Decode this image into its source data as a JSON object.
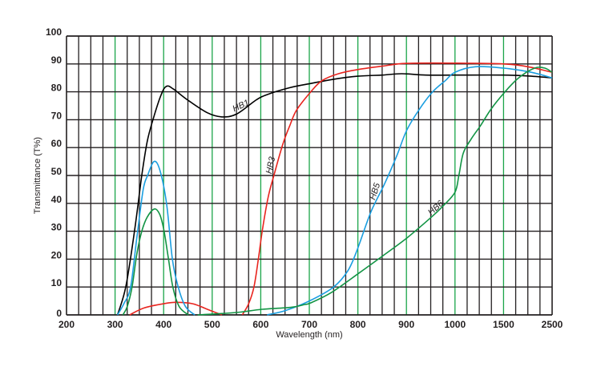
{
  "chart_data": {
    "type": "line",
    "title": "",
    "xlabel": "Wavelength (nm)",
    "ylabel": "Transmittance (T%)",
    "x_scale": "piecewise (200–1000 linear, then 1500, 2500)",
    "x_ticks": [
      200,
      300,
      400,
      500,
      600,
      700,
      800,
      900,
      1000,
      1500,
      2500
    ],
    "y_ticks": [
      0,
      10,
      20,
      30,
      40,
      50,
      60,
      70,
      80,
      90,
      100
    ],
    "ylim": [
      0,
      100
    ],
    "xlim": [
      200,
      2500
    ],
    "grid": true,
    "grid_colors": {
      "minor": "#231f20",
      "major": "#1aa549"
    },
    "series": [
      {
        "name": "HB1",
        "color": "#000000",
        "segments": [
          [
            [
              305,
              0
            ],
            [
              322,
              10
            ],
            [
              340,
              30
            ],
            [
              355,
              50
            ],
            [
              366,
              62
            ],
            [
              378,
              70
            ],
            [
              395,
              79
            ],
            [
              406,
              82
            ],
            [
              420,
              81
            ],
            [
              450,
              77
            ],
            [
              490,
              72.5
            ],
            [
              520,
              71
            ],
            [
              550,
              72
            ],
            [
              590,
              77
            ],
            [
              613,
              79
            ],
            [
              660,
              81.5
            ],
            [
              703,
              83
            ],
            [
              750,
              84.5
            ],
            [
              800,
              85.6
            ],
            [
              850,
              86
            ],
            [
              890,
              86.5
            ],
            [
              940,
              86
            ],
            [
              1000,
              86
            ],
            [
              1500,
              86
            ],
            [
              2000,
              85.7
            ],
            [
              2500,
              85
            ]
          ]
        ]
      },
      {
        "name": "HB3",
        "color": "#e8251f",
        "segments": [
          [
            [
              330,
              0
            ],
            [
              360,
              2.5
            ],
            [
              400,
              4
            ],
            [
              425,
              4.5
            ],
            [
              460,
              4
            ],
            [
              490,
              2
            ],
            [
              520,
              0
            ]
          ],
          [
            [
              562,
              0
            ],
            [
              575,
              4
            ],
            [
              586,
              10
            ],
            [
              595,
              20
            ],
            [
              603,
              30
            ],
            [
              615,
              42
            ],
            [
              627,
              50
            ],
            [
              645,
              61
            ],
            [
              660,
              68
            ],
            [
              674,
              73.5
            ],
            [
              703,
              80
            ],
            [
              726,
              84
            ],
            [
              760,
              86.5
            ],
            [
              800,
              88
            ],
            [
              850,
              89.2
            ],
            [
              900,
              90.2
            ],
            [
              1000,
              90.3
            ],
            [
              1500,
              90
            ],
            [
              2000,
              89
            ],
            [
              2500,
              87
            ]
          ]
        ]
      },
      {
        "name": "HB5",
        "color": "#1a9ee0",
        "segments": [
          [
            [
              305,
              0
            ],
            [
              318,
              4
            ],
            [
              332,
              10
            ],
            [
              345,
              28
            ],
            [
              358,
              45
            ],
            [
              367,
              50
            ],
            [
              380,
              55
            ],
            [
              392,
              52
            ],
            [
              406,
              40
            ],
            [
              418,
              20
            ],
            [
              430,
              10
            ],
            [
              445,
              3
            ],
            [
              464,
              0
            ]
          ],
          [
            [
              613,
              0
            ],
            [
              650,
              1.5
            ],
            [
              700,
              5
            ],
            [
              750,
              10
            ],
            [
              780,
              16
            ],
            [
              800,
              24
            ],
            [
              827,
              37
            ],
            [
              855,
              47
            ],
            [
              880,
              57
            ],
            [
              900,
              66
            ],
            [
              926,
              73.6
            ],
            [
              954,
              80
            ],
            [
              980,
              84
            ],
            [
              1000,
              87
            ],
            [
              1210,
              89
            ],
            [
              1500,
              88.5
            ],
            [
              2070,
              87
            ],
            [
              2500,
              85
            ]
          ]
        ]
      },
      {
        "name": "HB6",
        "color": "#129444",
        "segments": [
          [
            [
              316,
              0
            ],
            [
              325,
              3
            ],
            [
              335,
              10
            ],
            [
              345,
              22
            ],
            [
              355,
              30
            ],
            [
              366,
              35
            ],
            [
              381,
              38
            ],
            [
              392,
              36
            ],
            [
              401,
              30
            ],
            [
              410,
              20
            ],
            [
              419,
              10
            ],
            [
              432,
              3
            ],
            [
              451,
              0
            ]
          ],
          [
            [
              470,
              0
            ],
            [
              520,
              0.5
            ],
            [
              558,
              1
            ],
            [
              603,
              2
            ],
            [
              662,
              2.7
            ],
            [
              690,
              3.7
            ],
            [
              703,
              4.3
            ],
            [
              745,
              8
            ],
            [
              800,
              14.7
            ],
            [
              850,
              21
            ],
            [
              901,
              27.6
            ],
            [
              951,
              35
            ],
            [
              975,
              39
            ],
            [
              1000,
              44
            ],
            [
              1040,
              50
            ],
            [
              1085,
              58
            ],
            [
              1165,
              63
            ],
            [
              1265,
              68
            ],
            [
              1375,
              74
            ],
            [
              1530,
              80
            ],
            [
              1810,
              85
            ],
            [
              2140,
              88.5
            ],
            [
              2350,
              88.5
            ],
            [
              2500,
              87
            ]
          ]
        ]
      }
    ],
    "curve_labels": [
      "HB1",
      "HB3",
      "HB5",
      "HB6"
    ]
  }
}
